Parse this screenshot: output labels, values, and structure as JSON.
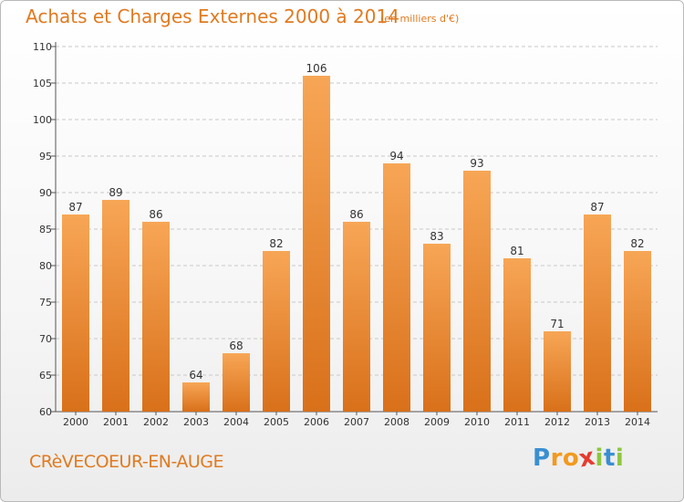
{
  "header": {
    "title": "Achats et Charges Externes 2000 à 2014",
    "unit": "(en milliers d'€)"
  },
  "footer": {
    "place": "CRèVECOEUR-EN-AUGE",
    "logo_text": "Proxiti",
    "logo_colors": [
      "#3a8fd1",
      "#f29a1f",
      "#f29a1f",
      "#e63b2e",
      "#8ec63f",
      "#3a8fd1",
      "#8ec63f"
    ]
  },
  "colors": {
    "accent": "#e07a20",
    "bar_top": "#f7a656",
    "bar_bottom": "#d9701a",
    "grid": "#c8c8c8"
  },
  "chart_data": {
    "type": "bar",
    "categories": [
      "2000",
      "2001",
      "2002",
      "2003",
      "2004",
      "2005",
      "2006",
      "2007",
      "2008",
      "2009",
      "2010",
      "2011",
      "2012",
      "2013",
      "2014"
    ],
    "values": [
      87,
      89,
      86,
      64,
      68,
      82,
      106,
      86,
      94,
      83,
      93,
      81,
      71,
      87,
      82
    ],
    "ylim": [
      60,
      110
    ],
    "yticks": [
      60,
      65,
      70,
      75,
      80,
      85,
      90,
      95,
      100,
      105,
      110
    ],
    "grid": true,
    "title": "Achats et Charges Externes 2000 à 2014",
    "xlabel": "",
    "ylabel": ""
  }
}
